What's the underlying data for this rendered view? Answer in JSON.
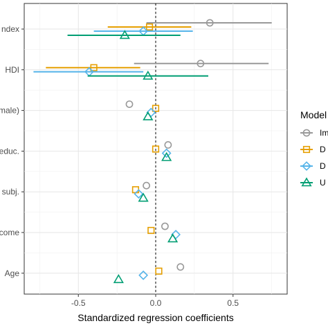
{
  "chart_data": {
    "type": "scatter",
    "subtype": "forest-plot",
    "title": "",
    "xlabel": "Standardized regression coefficients",
    "ylabel": "",
    "xlim": [
      -0.85,
      0.85
    ],
    "x_ticks": [
      "-0.5",
      "0.0",
      "0.5"
    ],
    "x_tick_values": [
      -0.5,
      0.0,
      0.5
    ],
    "reference_line_x": 0,
    "grid": true,
    "categories": [
      "ndex",
      "HDI",
      "male)",
      "educ.",
      "subj.",
      "come",
      "Age"
    ],
    "legend": {
      "title": "Model",
      "placement": "right",
      "labels": [
        "Im",
        "D",
        "D",
        "U"
      ]
    },
    "series": [
      {
        "name": "Im",
        "marker": "circle",
        "color": "#999999",
        "points": [
          {
            "y": "ndex",
            "x": 0.35,
            "low": -0.06,
            "high": 0.75
          },
          {
            "y": "HDI",
            "x": 0.29,
            "low": -0.14,
            "high": 0.73
          },
          {
            "y": "male)",
            "x": -0.17
          },
          {
            "y": "educ.",
            "x": 0.08
          },
          {
            "y": "subj.",
            "x": -0.06
          },
          {
            "y": "come",
            "x": 0.06
          },
          {
            "y": "Age",
            "x": 0.16
          }
        ]
      },
      {
        "name": "D",
        "marker": "square",
        "color": "#E69F00",
        "points": [
          {
            "y": "ndex",
            "x": -0.04,
            "low": -0.31,
            "high": 0.23
          },
          {
            "y": "HDI",
            "x": -0.4,
            "low": -0.71,
            "high": -0.1
          },
          {
            "y": "male)",
            "x": 0.0
          },
          {
            "y": "educ.",
            "x": 0.0
          },
          {
            "y": "subj.",
            "x": -0.13
          },
          {
            "y": "come",
            "x": -0.03
          },
          {
            "y": "Age",
            "x": 0.02
          }
        ]
      },
      {
        "name": "D",
        "marker": "diamond",
        "color": "#56B4E9",
        "points": [
          {
            "y": "ndex",
            "x": -0.08,
            "low": -0.4,
            "high": 0.24
          },
          {
            "y": "HDI",
            "x": -0.43,
            "low": -0.79,
            "high": -0.08
          },
          {
            "y": "male)",
            "x": -0.03
          },
          {
            "y": "educ.",
            "x": 0.07
          },
          {
            "y": "subj.",
            "x": -0.11
          },
          {
            "y": "come",
            "x": 0.13
          },
          {
            "y": "Age",
            "x": -0.08
          }
        ]
      },
      {
        "name": "U",
        "marker": "triangle",
        "color": "#009E73",
        "points": [
          {
            "y": "ndex",
            "x": -0.2,
            "low": -0.57,
            "high": 0.16
          },
          {
            "y": "HDI",
            "x": -0.05,
            "low": -0.44,
            "high": 0.34
          },
          {
            "y": "male)",
            "x": -0.05
          },
          {
            "y": "educ.",
            "x": 0.07
          },
          {
            "y": "subj.",
            "x": -0.08
          },
          {
            "y": "come",
            "x": 0.11
          },
          {
            "y": "Age",
            "x": -0.24
          }
        ]
      }
    ]
  }
}
